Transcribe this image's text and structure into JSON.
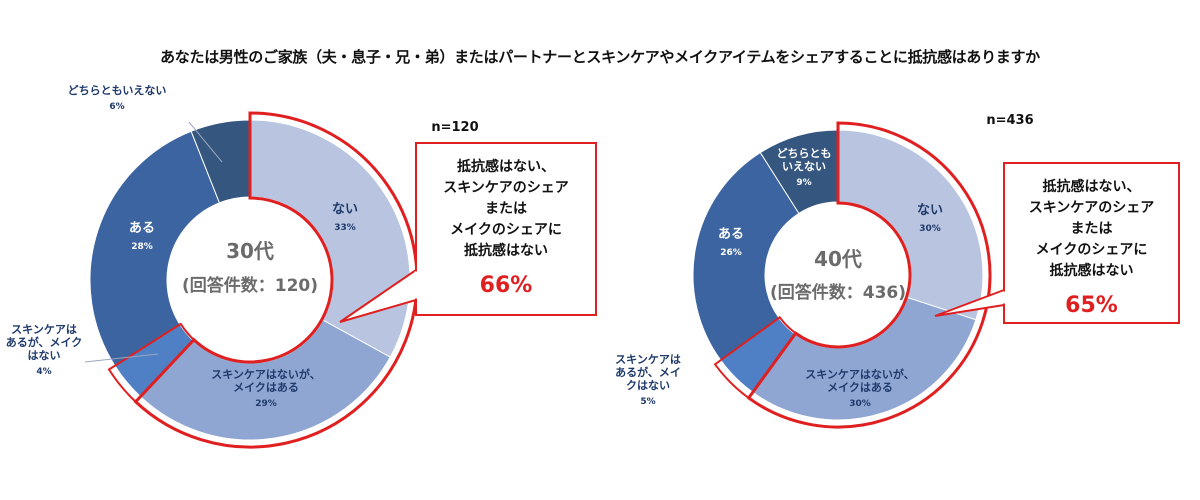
{
  "title": "あなたは男性のご家族（夫・息子・兄・弟）またはパートナーとスキンケアやメイクアイテムをシェアすることに抵抗感はありますか",
  "colors": {
    "none": "#b8c4e0",
    "skincare_no_makeup_yes": "#8fa6d2",
    "skincare_yes_makeup_no": "#4f7fc4",
    "yes": "#3b64a0",
    "neither": "#35577f",
    "highlight": "#e02020"
  },
  "chart_data": [
    {
      "type": "pie",
      "n_label": "n=120",
      "center_label": [
        "30代",
        "(回答件数：120)"
      ],
      "slices": [
        {
          "key": "none",
          "label": [
            "ない"
          ],
          "value": 33,
          "pct_label": "33%"
        },
        {
          "key": "skincare_no_makeup_yes",
          "label": [
            "スキンケアはないが、",
            "メイクはある"
          ],
          "value": 29,
          "pct_label": "29%"
        },
        {
          "key": "skincare_yes_makeup_no",
          "label": [
            "スキンケアは",
            "あるが、メイク",
            "はない"
          ],
          "value": 4,
          "pct_label": "4%"
        },
        {
          "key": "yes",
          "label": [
            "ある"
          ],
          "value": 28,
          "pct_label": "28%"
        },
        {
          "key": "neither",
          "label": [
            "どちらともいえない"
          ],
          "value": 6,
          "pct_label": "6%"
        }
      ],
      "callout": {
        "lines": [
          "抵抗感はない、",
          "スキンケアのシェア",
          "または",
          "メイクのシェアに",
          "抵抗感はない"
        ],
        "percent": "66%"
      }
    },
    {
      "type": "pie",
      "n_label": "n=436",
      "center_label": [
        "40代",
        "(回答件数：436)"
      ],
      "slices": [
        {
          "key": "none",
          "label": [
            "ない"
          ],
          "value": 30,
          "pct_label": "30%"
        },
        {
          "key": "skincare_no_makeup_yes",
          "label": [
            "スキンケアはないが、",
            "メイクはある"
          ],
          "value": 30,
          "pct_label": "30%"
        },
        {
          "key": "skincare_yes_makeup_no",
          "label": [
            "スキンケアは",
            "あるが、メイ",
            "クはない"
          ],
          "value": 5,
          "pct_label": "5%"
        },
        {
          "key": "yes",
          "label": [
            "ある"
          ],
          "value": 26,
          "pct_label": "26%"
        },
        {
          "key": "neither",
          "label": [
            "どちらとも",
            "いえない"
          ],
          "value": 9,
          "pct_label": "9%"
        }
      ],
      "callout": {
        "lines": [
          "抵抗感はない、",
          "スキンケアのシェア",
          "または",
          "メイクのシェアに",
          "抵抗感はない"
        ],
        "percent": "65%"
      }
    }
  ]
}
